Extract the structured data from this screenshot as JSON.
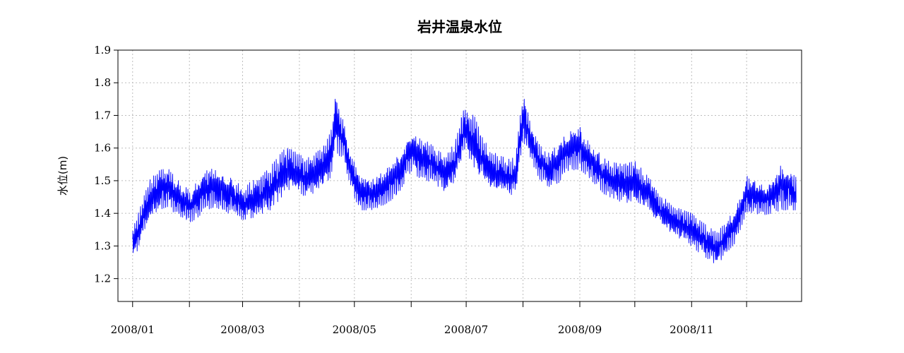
{
  "chart_data": {
    "type": "line",
    "title": "岩井温泉水位",
    "xlabel": "",
    "ylabel": "水位(m)",
    "color": "#0000ff",
    "xlim": [
      "2007-12-24",
      "2008-12-31"
    ],
    "ylim": [
      1.13,
      1.9
    ],
    "y_ticks": [
      1.2,
      1.3,
      1.4,
      1.5,
      1.6,
      1.7,
      1.8,
      1.9
    ],
    "y_tick_labels": [
      "1.2",
      "1.3",
      "1.4",
      "1.5",
      "1.6",
      "1.7",
      "1.8",
      "1.9"
    ],
    "x_ticks": [
      "2008-01-01",
      "2008-02-01",
      "2008-03-01",
      "2008-04-01",
      "2008-05-01",
      "2008-06-01",
      "2008-07-01",
      "2008-08-01",
      "2008-09-01",
      "2008-10-01",
      "2008-11-01",
      "2008-12-01"
    ],
    "x_tick_labels": [
      "2008/01",
      "",
      "2008/03",
      "",
      "2008/05",
      "",
      "2008/07",
      "",
      "2008/09",
      "",
      "2008/11",
      ""
    ],
    "grid": true,
    "legend": "none",
    "series": [
      {
        "x": [
          "2008-01-01",
          "2008-01-05",
          "2008-01-10",
          "2008-01-15",
          "2008-01-20",
          "2008-01-25",
          "2008-02-01",
          "2008-02-05",
          "2008-02-10",
          "2008-02-15",
          "2008-02-20",
          "2008-02-25",
          "2008-03-01",
          "2008-03-05",
          "2008-03-10",
          "2008-03-15",
          "2008-03-20",
          "2008-03-25",
          "2008-04-01",
          "2008-04-05",
          "2008-04-10",
          "2008-04-15",
          "2008-04-18",
          "2008-04-21",
          "2008-04-25",
          "2008-05-01",
          "2008-05-05",
          "2008-05-10",
          "2008-05-15",
          "2008-05-20",
          "2008-05-25",
          "2008-06-01",
          "2008-06-05",
          "2008-06-10",
          "2008-06-15",
          "2008-06-20",
          "2008-06-25",
          "2008-06-30",
          "2008-07-05",
          "2008-07-10",
          "2008-07-15",
          "2008-07-20",
          "2008-07-25",
          "2008-07-28",
          "2008-08-01",
          "2008-08-05",
          "2008-08-10",
          "2008-08-15",
          "2008-08-20",
          "2008-08-25",
          "2008-09-01",
          "2008-09-05",
          "2008-09-10",
          "2008-09-15",
          "2008-09-20",
          "2008-09-25",
          "2008-10-01",
          "2008-10-05",
          "2008-10-10",
          "2008-10-15",
          "2008-10-20",
          "2008-10-25",
          "2008-11-01",
          "2008-11-05",
          "2008-11-10",
          "2008-11-15",
          "2008-11-20",
          "2008-11-25",
          "2008-12-01",
          "2008-12-05",
          "2008-12-10",
          "2008-12-15",
          "2008-12-20",
          "2008-12-25",
          "2008-12-28"
        ],
        "y": [
          1.3,
          1.36,
          1.44,
          1.47,
          1.48,
          1.45,
          1.42,
          1.44,
          1.47,
          1.48,
          1.46,
          1.45,
          1.43,
          1.44,
          1.45,
          1.47,
          1.5,
          1.54,
          1.52,
          1.51,
          1.52,
          1.55,
          1.58,
          1.68,
          1.62,
          1.5,
          1.46,
          1.46,
          1.47,
          1.49,
          1.52,
          1.59,
          1.57,
          1.56,
          1.54,
          1.52,
          1.56,
          1.66,
          1.62,
          1.57,
          1.53,
          1.52,
          1.51,
          1.52,
          1.7,
          1.62,
          1.56,
          1.53,
          1.55,
          1.59,
          1.6,
          1.57,
          1.54,
          1.51,
          1.5,
          1.49,
          1.5,
          1.48,
          1.45,
          1.41,
          1.39,
          1.37,
          1.35,
          1.33,
          1.31,
          1.29,
          1.33,
          1.36,
          1.46,
          1.45,
          1.44,
          1.45,
          1.48,
          1.47,
          1.46
        ],
        "spread": [
          0.1,
          0.11,
          0.12,
          0.12,
          0.12,
          0.11,
          0.1,
          0.11,
          0.12,
          0.12,
          0.11,
          0.11,
          0.1,
          0.11,
          0.12,
          0.13,
          0.14,
          0.13,
          0.12,
          0.12,
          0.13,
          0.12,
          0.14,
          0.18,
          0.12,
          0.11,
          0.1,
          0.1,
          0.1,
          0.11,
          0.12,
          0.12,
          0.12,
          0.12,
          0.11,
          0.11,
          0.12,
          0.14,
          0.17,
          0.12,
          0.12,
          0.11,
          0.11,
          0.11,
          0.15,
          0.11,
          0.11,
          0.11,
          0.12,
          0.12,
          0.13,
          0.11,
          0.11,
          0.11,
          0.11,
          0.12,
          0.12,
          0.11,
          0.1,
          0.09,
          0.09,
          0.09,
          0.1,
          0.1,
          0.1,
          0.1,
          0.1,
          0.1,
          0.11,
          0.1,
          0.09,
          0.1,
          0.14,
          0.12,
          0.1
        ]
      }
    ]
  }
}
